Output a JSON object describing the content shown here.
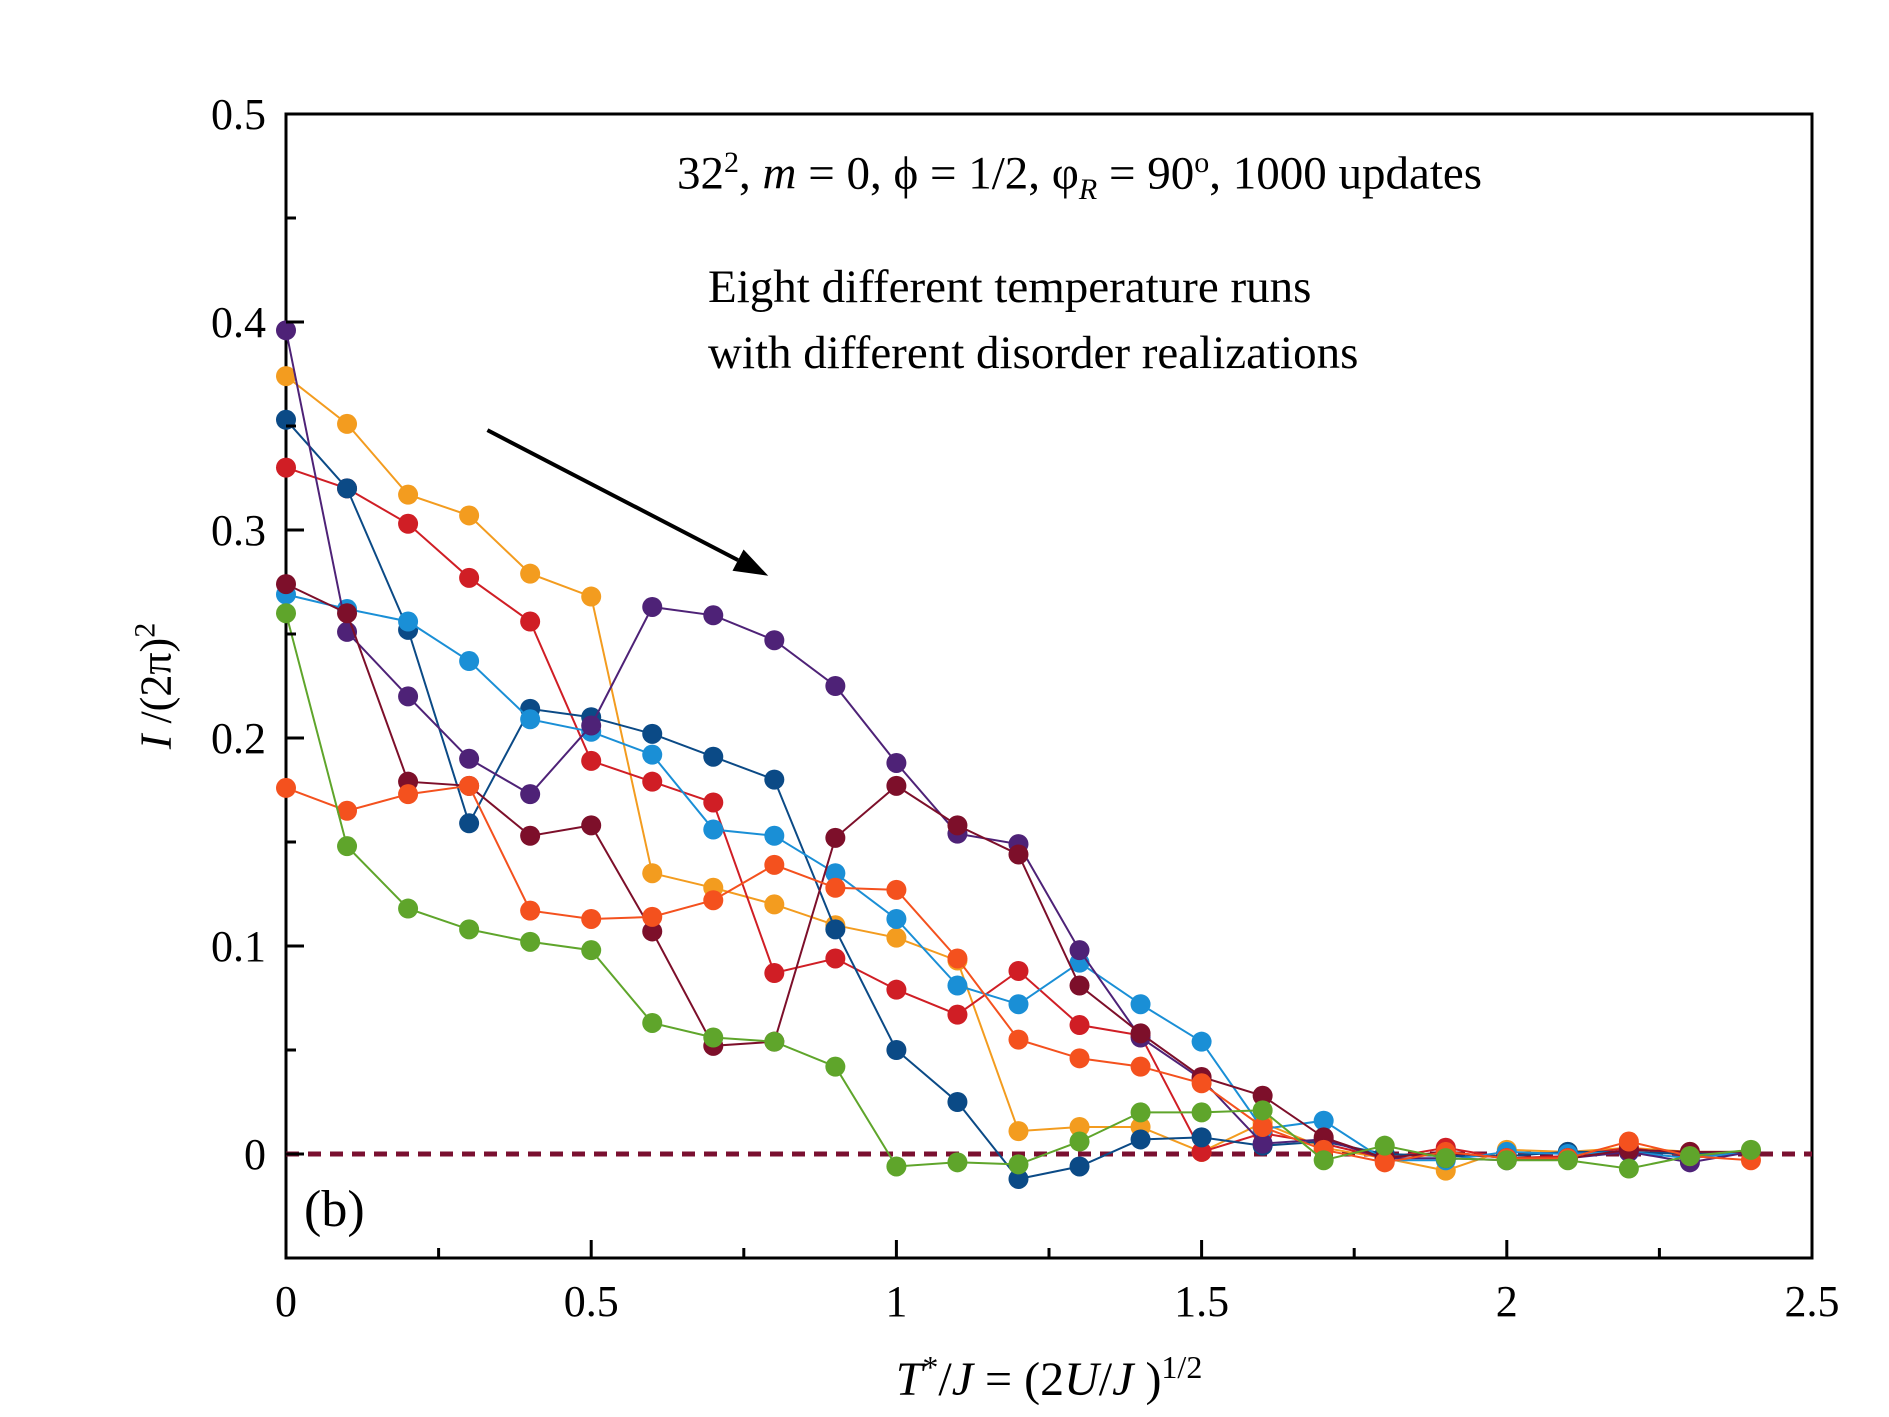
{
  "chart_data": {
    "type": "line",
    "xlabel": {
      "a": "T",
      "b": "*",
      "c": "/",
      "d": "J",
      "e": " = (2",
      "f": "U",
      "g": "/",
      "h": "J",
      "i": " )",
      "j": "1/2"
    },
    "ylabel": {
      "a": "I",
      "b": " /(2π)",
      "c": "2"
    },
    "xlim": [
      0,
      2.5
    ],
    "ylim": [
      -0.05,
      0.5
    ],
    "x_ticks": [
      0,
      0.5,
      1,
      1.5,
      2,
      2.5
    ],
    "x_tick_labels": [
      "0",
      "0.5",
      "1",
      "1.5",
      "2",
      "2.5"
    ],
    "y_ticks": [
      0,
      0.1,
      0.2,
      0.3,
      0.4,
      0.5
    ],
    "y_tick_labels": [
      "0",
      "0.1",
      "0.2",
      "0.3",
      "0.4",
      "0.5"
    ],
    "grid": false,
    "legend": "none",
    "reference_line": {
      "y": 0,
      "style": "dashed",
      "color": "#7a1030"
    },
    "panel_label": "(b)",
    "annotation_params": {
      "a": "32",
      "b": "2",
      "c": ",  ",
      "d": "m",
      "e": "  = 0,  ϕ = 1/2,  φ",
      "f": "R",
      "g": " = 90",
      "h": "o",
      "i": ",  1000 updates"
    },
    "annotation_lines": [
      "Eight different temperature runs",
      "with different disorder realizations"
    ],
    "arrow": {
      "from": [
        0.33,
        0.348
      ],
      "to": [
        0.79,
        0.278
      ]
    },
    "x": [
      0,
      0.1,
      0.2,
      0.3,
      0.4,
      0.5,
      0.6,
      0.7,
      0.8,
      0.9,
      1.0,
      1.1,
      1.2,
      1.3,
      1.4,
      1.5,
      1.6,
      1.7,
      1.8,
      1.9,
      2.0,
      2.1,
      2.2,
      2.3,
      2.4
    ],
    "series": [
      {
        "color": "#f39c1f",
        "values": [
          0.374,
          0.351,
          0.317,
          0.307,
          0.279,
          0.268,
          0.135,
          0.128,
          0.12,
          0.11,
          0.104,
          0.093,
          0.011,
          0.013,
          0.013,
          0.001,
          0.015,
          0.003,
          -0.002,
          -0.008,
          0.002,
          0.001,
          0.003,
          0.001,
          0.001
        ]
      },
      {
        "color": "#d01e25",
        "values": [
          0.33,
          0.32,
          0.303,
          0.277,
          0.256,
          0.189,
          0.179,
          0.169,
          0.087,
          0.094,
          0.079,
          0.067,
          0.088,
          0.062,
          0.057,
          0.001,
          0.01,
          0.005,
          -0.002,
          0.003,
          -0.002,
          -0.001,
          0.003,
          -0.001,
          0.001
        ]
      },
      {
        "color": "#0b4a86",
        "values": [
          0.353,
          0.32,
          0.252,
          0.159,
          0.214,
          0.21,
          0.202,
          0.191,
          0.18,
          0.108,
          0.05,
          0.025,
          -0.012,
          -0.006,
          0.007,
          0.008,
          0.004,
          0.006,
          0.0,
          -0.001,
          -0.001,
          0.001,
          0.001,
          0.0,
          0.001
        ]
      },
      {
        "color": "#1a8fd6",
        "values": [
          0.269,
          0.262,
          0.256,
          0.237,
          0.209,
          0.203,
          0.192,
          0.156,
          0.153,
          0.135,
          0.113,
          0.081,
          0.072,
          0.092,
          0.072,
          0.054,
          0.012,
          0.016,
          -0.003,
          -0.003,
          0.001,
          0.0,
          0.001,
          -0.002,
          0.001
        ]
      },
      {
        "color": "#4e2277",
        "values": [
          0.396,
          0.251,
          0.22,
          0.19,
          0.173,
          0.206,
          0.263,
          0.259,
          0.247,
          0.225,
          0.188,
          0.154,
          0.149,
          0.098,
          0.056,
          0.036,
          0.005,
          0.007,
          -0.002,
          -0.002,
          -0.003,
          -0.002,
          0.001,
          -0.004,
          0.001
        ]
      },
      {
        "color": "#7d0f2a",
        "values": [
          0.274,
          0.26,
          0.179,
          0.177,
          0.153,
          0.158,
          0.107,
          0.052,
          0.054,
          0.152,
          0.177,
          0.158,
          0.144,
          0.081,
          0.058,
          0.037,
          0.028,
          0.008,
          -0.002,
          0.001,
          -0.002,
          -0.002,
          0.002,
          0.001,
          0.001
        ]
      },
      {
        "color": "#f4511e",
        "values": [
          0.176,
          0.165,
          0.173,
          0.177,
          0.117,
          0.113,
          0.114,
          0.122,
          0.139,
          0.128,
          0.127,
          0.094,
          0.055,
          0.046,
          0.042,
          0.034,
          0.013,
          0.002,
          -0.004,
          0.001,
          -0.002,
          -0.002,
          0.006,
          -0.001,
          -0.003
        ]
      },
      {
        "color": "#5fa52b",
        "values": [
          0.26,
          0.148,
          0.118,
          0.108,
          0.102,
          0.098,
          0.063,
          0.056,
          0.054,
          0.042,
          -0.006,
          -0.004,
          -0.005,
          0.006,
          0.02,
          0.02,
          0.021,
          -0.003,
          0.004,
          -0.002,
          -0.003,
          -0.003,
          -0.007,
          -0.001,
          0.002
        ]
      }
    ]
  }
}
